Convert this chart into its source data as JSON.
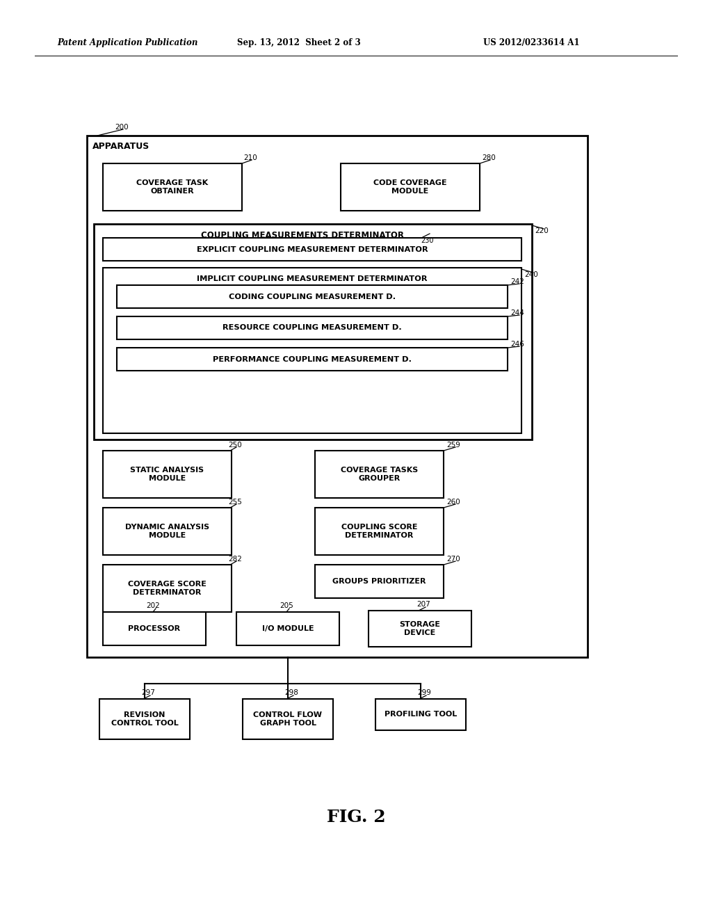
{
  "bg_color": "#ffffff",
  "header_left": "Patent Application Publication",
  "header_mid": "Sep. 13, 2012  Sheet 2 of 3",
  "header_right": "US 2012/0233614 A1",
  "fig_label": "FIG. 2"
}
